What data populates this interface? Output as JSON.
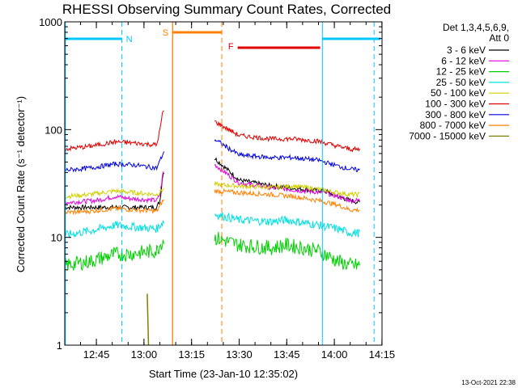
{
  "chart_data": {
    "type": "line",
    "title": "RHESSI Observing Summary Count Rates, Corrected",
    "xlabel": "Start Time (23-Jan-10 12:35:02)",
    "ylabel": "Corrected Count Rate (s⁻¹ detector⁻¹)",
    "yscale": "log",
    "ylim": [
      1,
      1000
    ],
    "xlim_minutes": [
      0,
      100
    ],
    "x_ticks": [
      {
        "label": "12:45",
        "min": 9.97
      },
      {
        "label": "13:00",
        "min": 24.97
      },
      {
        "label": "13:15",
        "min": 39.97
      },
      {
        "label": "13:30",
        "min": 54.97
      },
      {
        "label": "13:45",
        "min": 69.97
      },
      {
        "label": "14:00",
        "min": 84.97
      },
      {
        "label": "14:15",
        "min": 99.97
      }
    ],
    "y_ticks": [
      {
        "label": "1",
        "v": 1
      },
      {
        "label": "10",
        "v": 10
      },
      {
        "label": "100",
        "v": 100
      },
      {
        "label": "1000",
        "v": 1000
      }
    ],
    "legend_header": [
      "Det 1,3,4,5,6,9,",
      "Att 0"
    ],
    "timestamp": "13-Oct-2021 22:38",
    "series": [
      {
        "name": "3 - 6 keV",
        "color": "#000000",
        "pts": [
          [
            0,
            19
          ],
          [
            10,
            19
          ],
          [
            20,
            19
          ],
          [
            29,
            19
          ],
          [
            30,
            22
          ],
          [
            31,
            40
          ],
          [
            47,
            55
          ],
          [
            55,
            34
          ],
          [
            65,
            30
          ],
          [
            75,
            28
          ],
          [
            82,
            27
          ],
          [
            86,
            24
          ],
          [
            90,
            22
          ],
          [
            93,
            21
          ]
        ]
      },
      {
        "name": "6 - 12 keV",
        "color": "#e000e0",
        "pts": [
          [
            0,
            21
          ],
          [
            10,
            22
          ],
          [
            16,
            24
          ],
          [
            20,
            23
          ],
          [
            29,
            22
          ],
          [
            30,
            25
          ],
          [
            31,
            40
          ],
          [
            47,
            48
          ],
          [
            55,
            32
          ],
          [
            65,
            29
          ],
          [
            75,
            27
          ],
          [
            82,
            26
          ],
          [
            86,
            24
          ],
          [
            90,
            22
          ],
          [
            93,
            22
          ]
        ]
      },
      {
        "name": "12 - 25 keV",
        "color": "#00d000",
        "pts": [
          [
            0,
            5.5
          ],
          [
            8,
            6
          ],
          [
            16,
            7
          ],
          [
            20,
            7
          ],
          [
            29,
            7.5
          ],
          [
            31,
            9.5
          ],
          [
            47,
            10
          ],
          [
            55,
            8.5
          ],
          [
            65,
            8
          ],
          [
            70,
            8.5
          ],
          [
            80,
            7.5
          ],
          [
            86,
            6
          ],
          [
            90,
            5.5
          ],
          [
            93,
            5.5
          ]
        ]
      },
      {
        "name": "25 - 50 keV",
        "color": "#00e0e0",
        "pts": [
          [
            0,
            10.5
          ],
          [
            8,
            11.5
          ],
          [
            16,
            13
          ],
          [
            22,
            12.5
          ],
          [
            29,
            12
          ],
          [
            31,
            14
          ],
          [
            47,
            16.5
          ],
          [
            55,
            14.5
          ],
          [
            65,
            14
          ],
          [
            70,
            14.5
          ],
          [
            80,
            13
          ],
          [
            86,
            12
          ],
          [
            90,
            11
          ],
          [
            93,
            11
          ]
        ]
      },
      {
        "name": "50 - 100 keV",
        "color": "#d0d000",
        "pts": [
          [
            0,
            24
          ],
          [
            8,
            25
          ],
          [
            16,
            27
          ],
          [
            22,
            26
          ],
          [
            29,
            25
          ],
          [
            31,
            28
          ],
          [
            47,
            31
          ],
          [
            55,
            30
          ],
          [
            65,
            29
          ],
          [
            72,
            30
          ],
          [
            80,
            28
          ],
          [
            86,
            26
          ],
          [
            90,
            25
          ],
          [
            93,
            25
          ]
        ]
      },
      {
        "name": "100 - 300 keV",
        "color": "#e00000",
        "pts": [
          [
            0,
            66
          ],
          [
            8,
            70
          ],
          [
            16,
            77
          ],
          [
            22,
            75
          ],
          [
            29,
            72
          ],
          [
            30,
            100
          ],
          [
            31,
            150
          ],
          [
            47,
            120
          ],
          [
            55,
            88
          ],
          [
            65,
            82
          ],
          [
            72,
            82
          ],
          [
            80,
            78
          ],
          [
            86,
            70
          ],
          [
            90,
            66
          ],
          [
            93,
            65
          ]
        ]
      },
      {
        "name": "300 - 800 keV",
        "color": "#0000e0",
        "pts": [
          [
            0,
            42
          ],
          [
            8,
            44
          ],
          [
            16,
            48
          ],
          [
            22,
            47
          ],
          [
            29,
            44
          ],
          [
            31,
            60
          ],
          [
            47,
            82
          ],
          [
            55,
            58
          ],
          [
            65,
            55
          ],
          [
            72,
            55
          ],
          [
            80,
            52
          ],
          [
            86,
            46
          ],
          [
            90,
            43
          ],
          [
            93,
            42
          ]
        ]
      },
      {
        "name": "800 - 7000 keV",
        "color": "#ff8000",
        "pts": [
          [
            0,
            17
          ],
          [
            8,
            17.5
          ],
          [
            16,
            18.5
          ],
          [
            22,
            18
          ],
          [
            29,
            17.5
          ],
          [
            31,
            22
          ],
          [
            47,
            27
          ],
          [
            55,
            26
          ],
          [
            65,
            25
          ],
          [
            72,
            24
          ],
          [
            80,
            22
          ],
          [
            86,
            20
          ],
          [
            90,
            18
          ],
          [
            93,
            18
          ]
        ]
      },
      {
        "name": "7000 - 15000 keV",
        "color": "#808000",
        "pts": [
          [
            26,
            3
          ],
          [
            26.4,
            1
          ]
        ]
      }
    ],
    "annotations": [
      {
        "label": "N",
        "color": "#00c8ff"
      },
      {
        "label": "S",
        "color": "#ff8000"
      },
      {
        "label": "F",
        "color": "#e00000"
      }
    ]
  }
}
